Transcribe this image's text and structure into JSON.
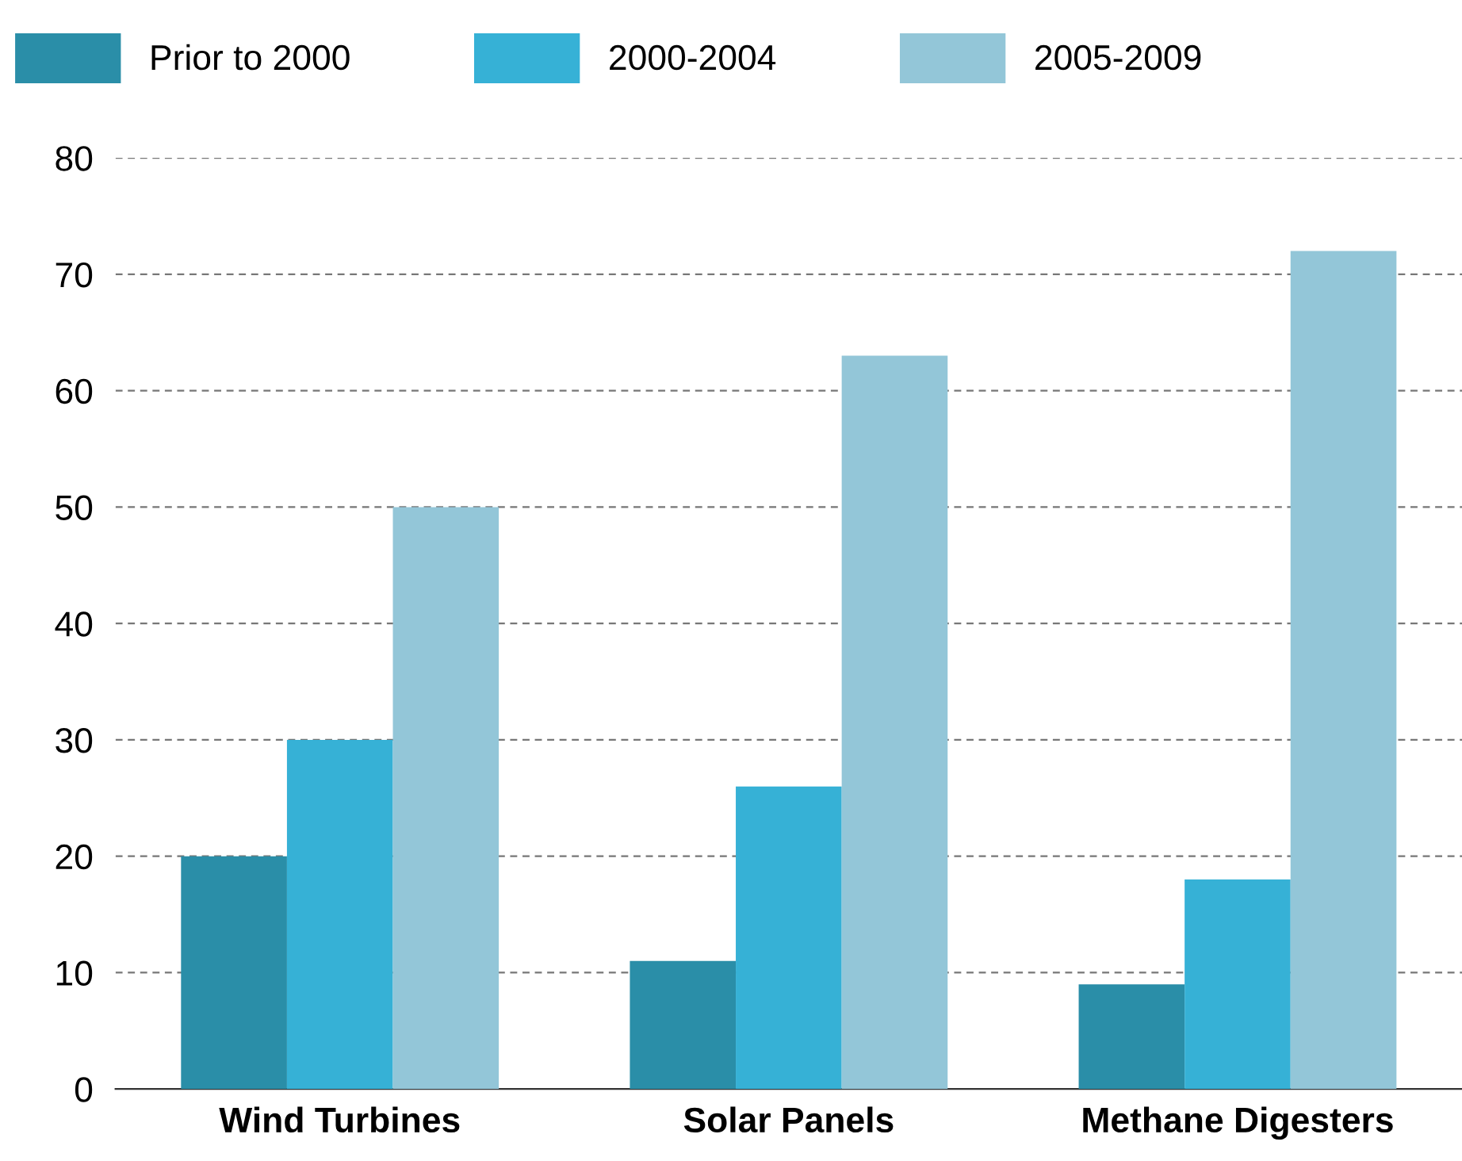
{
  "chart_data": {
    "type": "bar",
    "categories": [
      "Wind Turbines",
      "Solar Panels",
      "Methane Digesters"
    ],
    "series": [
      {
        "name": "Prior to 2000",
        "color": "#2a8ea8",
        "values": [
          20,
          11,
          9
        ]
      },
      {
        "name": "2000-2004",
        "color": "#36b1d6",
        "values": [
          30,
          26,
          18
        ]
      },
      {
        "name": "2005-2009",
        "color": "#93c6d8",
        "values": [
          50,
          63,
          72
        ]
      }
    ],
    "ylim": [
      0,
      80
    ],
    "yticks": [
      0,
      10,
      20,
      30,
      40,
      50,
      60,
      70,
      80
    ],
    "grid": "y",
    "legend": "top left"
  }
}
